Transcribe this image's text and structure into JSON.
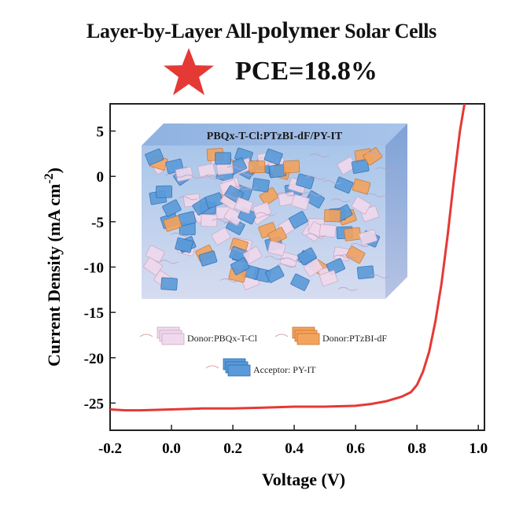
{
  "header": {
    "title_part1": "Layer-by-Layer All-",
    "title_part2": "polymer",
    "title_part3": " Solar Cells",
    "pce": "PCE=18.8%"
  },
  "colors": {
    "curve": "#e53935",
    "star": "#e53935",
    "frame": "#222222"
  },
  "inset": {
    "title": "PBQx-T-Cl:PTzBI-dF/PY-IT",
    "legend": [
      {
        "label": "Donor:PBQx-T-Cl",
        "color": "#f0d9ec"
      },
      {
        "label": "Donor:PTzBI-dF",
        "color": "#f2a35e"
      },
      {
        "label": "Acceptor: PY-IT",
        "color": "#5a9ad9"
      }
    ]
  },
  "chart_data": {
    "type": "line",
    "xlabel": "Voltage (V)",
    "ylabel": "Current Density (mA cm",
    "ylabel_sup": "-2",
    "ylabel_end": ")",
    "xlim": [
      -0.2,
      1.02
    ],
    "ylim": [
      -28,
      8
    ],
    "xticks": [
      -0.2,
      0.0,
      0.2,
      0.4,
      0.6,
      0.8,
      1.0
    ],
    "xtick_labels": [
      "-0.2",
      "0.0",
      "0.2",
      "0.4",
      "0.6",
      "0.8",
      "1.0"
    ],
    "yticks": [
      5,
      0,
      -5,
      -10,
      -15,
      -20,
      -25
    ],
    "ytick_labels": [
      "5",
      "0",
      "-5",
      "-10",
      "-15",
      "-20",
      "-25"
    ],
    "series": [
      {
        "x": [
          -0.2,
          -0.15,
          -0.1,
          0.0,
          0.1,
          0.2,
          0.3,
          0.4,
          0.5,
          0.6,
          0.65,
          0.7,
          0.75,
          0.78,
          0.8,
          0.82,
          0.84,
          0.86,
          0.88,
          0.9,
          0.92,
          0.94,
          0.955
        ],
        "y": [
          -25.7,
          -25.8,
          -25.8,
          -25.7,
          -25.6,
          -25.6,
          -25.5,
          -25.4,
          -25.4,
          -25.3,
          -25.1,
          -24.8,
          -24.3,
          -23.8,
          -23.0,
          -21.5,
          -19.3,
          -16.0,
          -11.8,
          -6.5,
          -0.5,
          5.0,
          8.0
        ]
      }
    ]
  }
}
